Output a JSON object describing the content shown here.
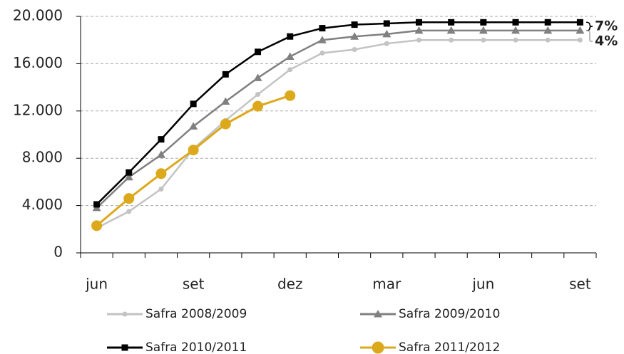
{
  "chart_data": {
    "type": "line",
    "categories": [
      "jun",
      null,
      null,
      "set",
      null,
      null,
      "dez",
      null,
      null,
      "mar",
      null,
      null,
      "jun",
      null,
      null,
      "set"
    ],
    "series": [
      {
        "name": "Safra 2008/2009",
        "color": "#c3c3c3",
        "marker": "circle",
        "values": [
          2100,
          3500,
          5400,
          8800,
          11200,
          13400,
          15500,
          16900,
          17200,
          17700,
          18000,
          18000,
          18000,
          18000,
          18000,
          18000
        ]
      },
      {
        "name": "Safra 2009/2010",
        "color": "#808080",
        "marker": "triangle",
        "values": [
          3800,
          6400,
          8300,
          10700,
          12800,
          14800,
          16600,
          18000,
          18300,
          18500,
          18800,
          18800,
          18800,
          18800,
          18800,
          18800
        ]
      },
      {
        "name": "Safra 2010/2011",
        "color": "#000000",
        "marker": "square",
        "values": [
          4100,
          6800,
          9600,
          12600,
          15100,
          17000,
          18300,
          19000,
          19300,
          19400,
          19500,
          19500,
          19500,
          19500,
          19500,
          19500
        ]
      },
      {
        "name": "Safra 2011/2012",
        "color": "#dca81c",
        "marker": "large-circle",
        "values": [
          2300,
          4600,
          6700,
          8700,
          10900,
          12400,
          13300,
          null,
          null,
          null,
          null,
          null,
          null,
          null,
          null,
          null
        ]
      }
    ],
    "ylim": [
      0,
      20000
    ],
    "yticks": [
      0,
      {
        "value": 4000,
        "label": "4.000"
      },
      {
        "value": 8000,
        "label": "8.000"
      },
      {
        "value": 12000,
        "label": "12.000"
      },
      {
        "value": 16000,
        "label": "16.000"
      },
      {
        "value": 20000,
        "label": "20.000"
      }
    ],
    "grid": true,
    "legend": "bottom",
    "annotations": [
      {
        "text": "7%",
        "color": "#000000"
      },
      {
        "text": "4%",
        "color": "#a6a6a6"
      }
    ]
  }
}
